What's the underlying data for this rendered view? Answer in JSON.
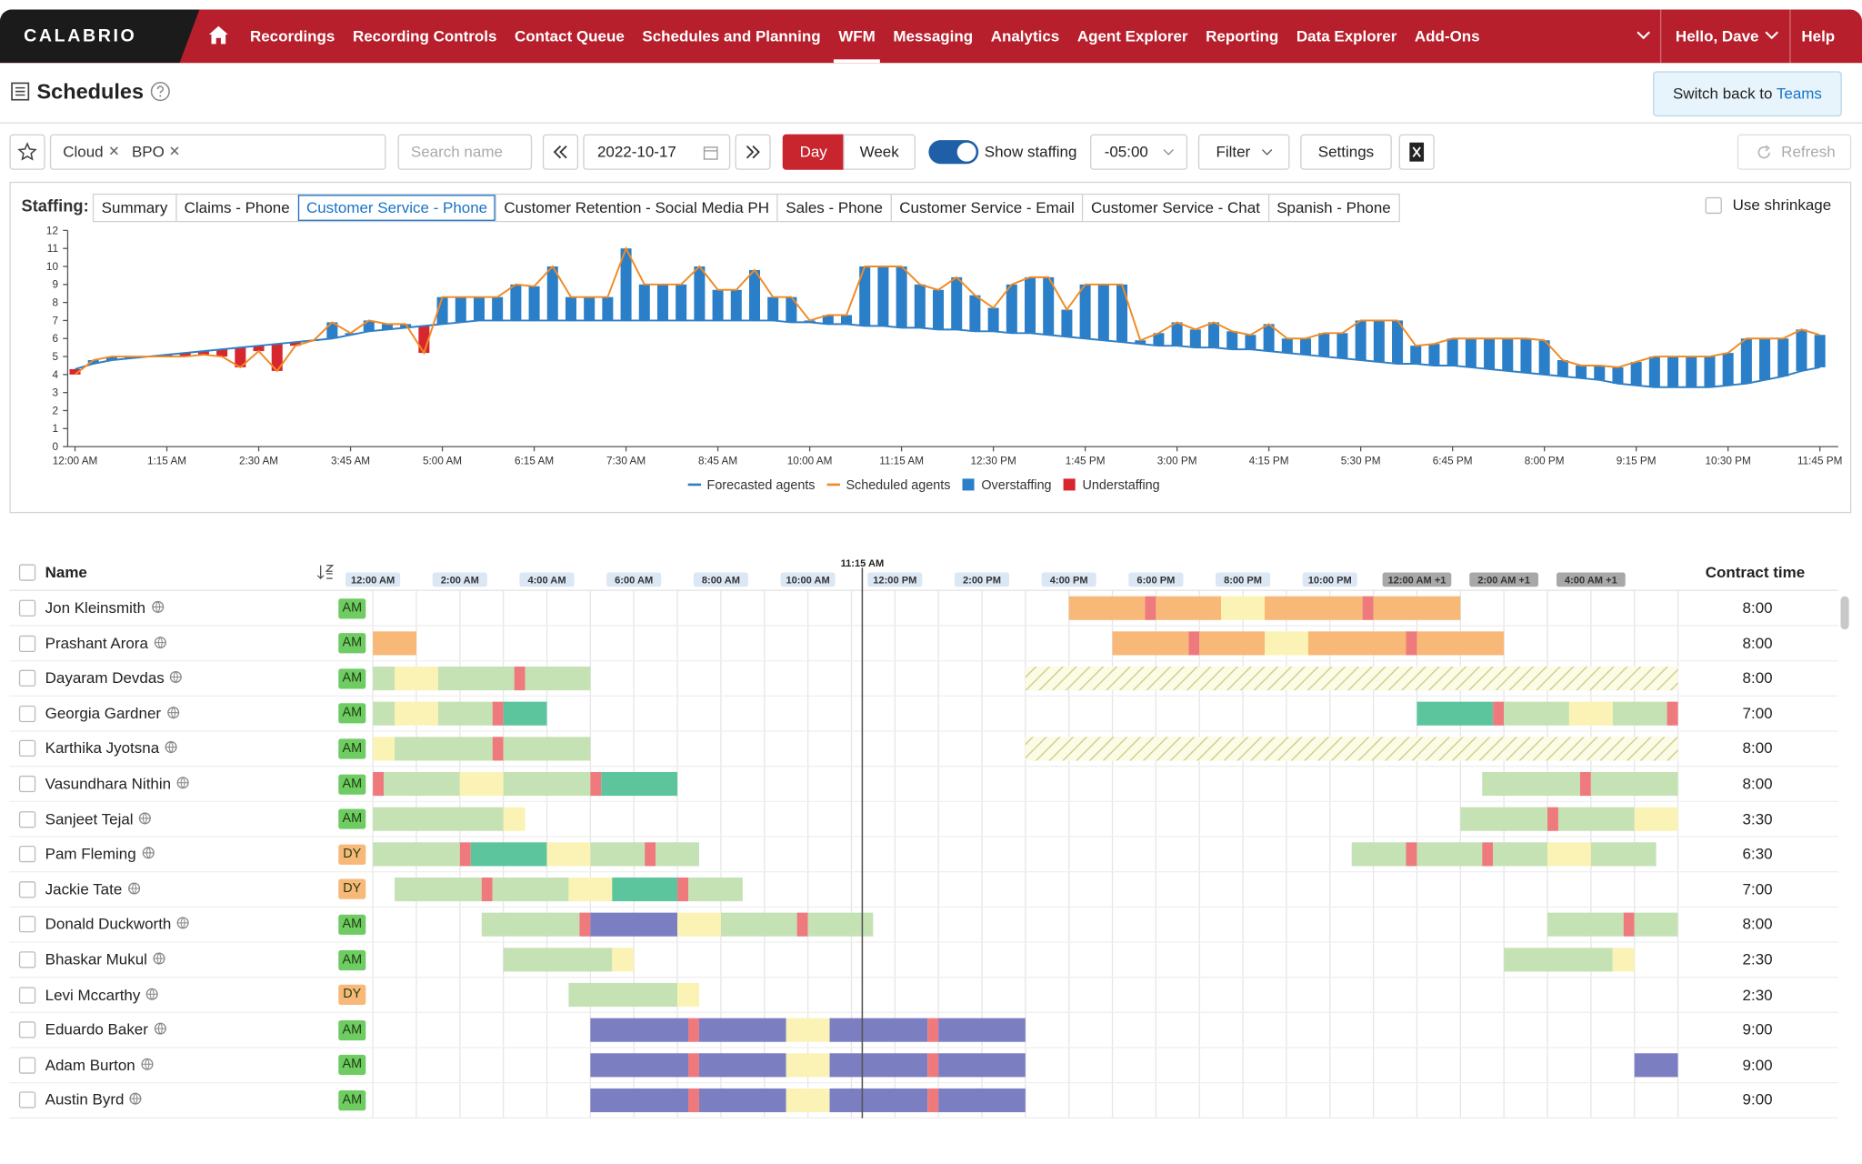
{
  "header": {
    "logo": "CALABRIO",
    "items": [
      "Recordings",
      "Recording Controls",
      "Contact Queue",
      "Schedules and Planning",
      "WFM",
      "Messaging",
      "Analytics",
      "Agent Explorer",
      "Reporting",
      "Data Explorer",
      "Add-Ons"
    ],
    "active": 4,
    "user": "Hello, Dave",
    "help": "Help"
  },
  "page": {
    "title": "Schedules",
    "switch_text": "Switch back to",
    "switch_link": "Teams"
  },
  "toolbar": {
    "tags": [
      "Cloud",
      "BPO"
    ],
    "search_placeholder": "Search name",
    "date": "2022-10-17",
    "views": [
      "Day",
      "Week"
    ],
    "show_staffing": "Show staffing",
    "timezone": "-05:00",
    "filter": "Filter",
    "settings": "Settings",
    "refresh": "Refresh"
  },
  "staffing": {
    "label": "Staffing:",
    "tabs": [
      "Summary",
      "Claims - Phone",
      "Customer Service - Phone",
      "Customer Retention - Social Media PH",
      "Sales - Phone",
      "Customer Service - Email",
      "Customer Service - Chat",
      "Spanish - Phone"
    ],
    "active": 2,
    "shrinkage": "Use shrinkage"
  },
  "chart_data": {
    "type": "staffing",
    "x": [
      0,
      0.25,
      0.5,
      0.75,
      1,
      1.25,
      1.5,
      1.75,
      2,
      2.25,
      2.5,
      2.75,
      3,
      3.25,
      3.5,
      3.75,
      4,
      4.25,
      4.5,
      4.75,
      5,
      5.25,
      5.5,
      5.75,
      6,
      6.25,
      6.5,
      6.75,
      7,
      7.25,
      7.5,
      7.75,
      8,
      8.25,
      8.5,
      8.75,
      9,
      9.25,
      9.5,
      9.75,
      10,
      10.25,
      10.5,
      10.75,
      11,
      11.25,
      11.5,
      11.75,
      12,
      12.25,
      12.5,
      12.75,
      13,
      13.25,
      13.5,
      13.75,
      14,
      14.25,
      14.5,
      14.75,
      15,
      15.25,
      15.5,
      15.75,
      16,
      16.25,
      16.5,
      16.75,
      17,
      17.25,
      17.5,
      17.75,
      18,
      18.25,
      18.5,
      18.75,
      19,
      19.25,
      19.5,
      19.75,
      20,
      20.25,
      20.5,
      20.75,
      21,
      21.25,
      21.5,
      21.75,
      22,
      22.25,
      22.5,
      22.75,
      23,
      23.25,
      23.5,
      23.75
    ],
    "series": [
      {
        "name": "Forecasted agents",
        "color": "#2f7fc4",
        "values": [
          4.3,
          4.6,
          4.8,
          4.9,
          5.0,
          5.1,
          5.2,
          5.3,
          5.4,
          5.5,
          5.6,
          5.7,
          5.8,
          5.9,
          6.0,
          6.2,
          6.4,
          6.5,
          6.6,
          6.7,
          6.8,
          6.9,
          7.0,
          7.0,
          7.0,
          7.0,
          7.0,
          7.0,
          7.0,
          7.0,
          7.0,
          7.0,
          7.0,
          7.0,
          7.0,
          7.0,
          7.0,
          7.0,
          7.0,
          6.9,
          6.9,
          6.8,
          6.8,
          6.7,
          6.7,
          6.6,
          6.6,
          6.5,
          6.5,
          6.4,
          6.4,
          6.3,
          6.3,
          6.2,
          6.1,
          6.0,
          5.9,
          5.8,
          5.7,
          5.6,
          5.6,
          5.5,
          5.5,
          5.4,
          5.4,
          5.3,
          5.2,
          5.1,
          5.0,
          4.9,
          4.8,
          4.7,
          4.6,
          4.6,
          4.5,
          4.5,
          4.4,
          4.3,
          4.2,
          4.1,
          4.0,
          3.9,
          3.8,
          3.7,
          3.5,
          3.4,
          3.3,
          3.3,
          3.3,
          3.3,
          3.4,
          3.5,
          3.7,
          3.9,
          4.2,
          4.4
        ]
      },
      {
        "name": "Scheduled agents",
        "color": "#f08a24",
        "values": [
          4.0,
          4.8,
          5.0,
          5.0,
          5.0,
          5.0,
          5.0,
          5.1,
          5.0,
          4.4,
          5.3,
          4.2,
          5.6,
          5.9,
          6.9,
          6.3,
          7.0,
          6.8,
          6.8,
          5.2,
          8.3,
          8.3,
          8.3,
          8.3,
          9.0,
          8.9,
          10.0,
          8.3,
          8.3,
          8.3,
          11.0,
          9.0,
          9.0,
          9.0,
          10.0,
          8.7,
          8.7,
          9.8,
          8.3,
          8.3,
          7.0,
          7.3,
          7.3,
          10.0,
          10.0,
          10.0,
          9.0,
          8.7,
          9.4,
          8.4,
          7.7,
          9.0,
          9.4,
          9.4,
          7.6,
          9.0,
          9.0,
          9.0,
          5.9,
          6.3,
          6.9,
          6.5,
          6.9,
          6.4,
          6.2,
          6.8,
          6.0,
          6.0,
          6.3,
          6.3,
          7.0,
          7.0,
          7.0,
          5.6,
          5.7,
          6.0,
          6.0,
          6.0,
          6.0,
          6.0,
          5.9,
          4.8,
          4.5,
          4.5,
          4.4,
          4.7,
          5.0,
          5.0,
          5.0,
          5.0,
          5.2,
          6.0,
          6.0,
          6.0,
          6.5,
          6.2
        ]
      }
    ],
    "difference_legend": [
      {
        "name": "Overstaffing",
        "color": "#2a7fc8"
      },
      {
        "name": "Understaffing",
        "color": "#d8262e"
      }
    ],
    "xlim": [
      -0.1,
      24
    ],
    "xticks": [
      {
        "value": 0,
        "label": "12:00 AM"
      },
      {
        "value": 1.25,
        "label": "1:15 AM"
      },
      {
        "value": 2.5,
        "label": "2:30 AM"
      },
      {
        "value": 3.75,
        "label": "3:45 AM"
      },
      {
        "value": 5,
        "label": "5:00 AM"
      },
      {
        "value": 6.25,
        "label": "6:15 AM"
      },
      {
        "value": 7.5,
        "label": "7:30 AM"
      },
      {
        "value": 8.75,
        "label": "8:45 AM"
      },
      {
        "value": 10,
        "label": "10:00 AM"
      },
      {
        "value": 11.25,
        "label": "11:15 AM"
      },
      {
        "value": 12.5,
        "label": "12:30 PM"
      },
      {
        "value": 13.75,
        "label": "1:45 PM"
      },
      {
        "value": 15,
        "label": "3:00 PM"
      },
      {
        "value": 16.25,
        "label": "4:15 PM"
      },
      {
        "value": 17.5,
        "label": "5:30 PM"
      },
      {
        "value": 18.75,
        "label": "6:45 PM"
      },
      {
        "value": 20,
        "label": "8:00 PM"
      },
      {
        "value": 21.25,
        "label": "9:15 PM"
      },
      {
        "value": 22.5,
        "label": "10:30 PM"
      },
      {
        "value": 23.75,
        "label": "11:45 PM"
      }
    ],
    "ylim": [
      0,
      12
    ],
    "yticks": [
      0,
      1,
      2,
      3,
      4,
      5,
      6,
      7,
      8,
      9,
      10,
      11,
      12
    ]
  },
  "schedule": {
    "name_header": "Name",
    "contract_header": "Contract time",
    "xlim": [
      0,
      30
    ],
    "now": {
      "value": 11.25,
      "label": "11:15 AM"
    },
    "ticks": [
      {
        "value": 0,
        "label": "12:00 AM"
      },
      {
        "value": 2,
        "label": "2:00 AM"
      },
      {
        "value": 4,
        "label": "4:00 AM"
      },
      {
        "value": 6,
        "label": "6:00 AM"
      },
      {
        "value": 8,
        "label": "8:00 AM"
      },
      {
        "value": 10,
        "label": "10:00 AM"
      },
      {
        "value": 12,
        "label": "12:00 PM"
      },
      {
        "value": 14,
        "label": "2:00 PM"
      },
      {
        "value": 16,
        "label": "4:00 PM"
      },
      {
        "value": 18,
        "label": "6:00 PM"
      },
      {
        "value": 20,
        "label": "8:00 PM"
      },
      {
        "value": 22,
        "label": "10:00 PM"
      },
      {
        "value": 24,
        "label": "12:00 AM +1"
      },
      {
        "value": 26,
        "label": "2:00 AM +1"
      },
      {
        "value": 28,
        "label": "4:00 AM +1"
      }
    ],
    "rows": [
      {
        "name": "Jon Kleinsmith",
        "badge": "AM",
        "badge_color": "#6fcc63",
        "contract": "8:00",
        "segments": [
          [
            16,
            17.75,
            "#f8b878"
          ],
          [
            17.75,
            18,
            "#ee7a7e"
          ],
          [
            18,
            19.5,
            "#f8b878"
          ],
          [
            19.5,
            20.5,
            "#fbf3b5"
          ],
          [
            20.5,
            22.75,
            "#f8b878"
          ],
          [
            22.75,
            23,
            "#ee7a7e"
          ],
          [
            23,
            25,
            "#f8b878"
          ]
        ]
      },
      {
        "name": "Prashant Arora",
        "badge": "AM",
        "badge_color": "#6fcc63",
        "contract": "8:00",
        "segments": [
          [
            0,
            1,
            "#f8b878"
          ],
          [
            17,
            18.75,
            "#f8b878"
          ],
          [
            18.75,
            19,
            "#ee7a7e"
          ],
          [
            19,
            20.5,
            "#f8b878"
          ],
          [
            20.5,
            21.5,
            "#fbf3b5"
          ],
          [
            21.5,
            23.75,
            "#f8b878"
          ],
          [
            23.75,
            24,
            "#ee7a7e"
          ],
          [
            24,
            26,
            "#f8b878"
          ]
        ]
      },
      {
        "name": "Dayaram Devdas",
        "badge": "AM",
        "badge_color": "#6fcc63",
        "contract": "8:00",
        "segments": [
          [
            0,
            0.5,
            "#c5e2b5"
          ],
          [
            0.5,
            1.5,
            "#fbf3b5"
          ],
          [
            1.5,
            3.25,
            "#c5e2b5"
          ],
          [
            3.25,
            3.5,
            "#ee7a7e"
          ],
          [
            3.5,
            5,
            "#c5e2b5"
          ],
          [
            15,
            30,
            "url(#hatch)"
          ]
        ]
      },
      {
        "name": "Georgia Gardner",
        "badge": "AM",
        "badge_color": "#6fcc63",
        "contract": "7:00",
        "segments": [
          [
            0,
            0.5,
            "#c5e2b5"
          ],
          [
            0.5,
            1.5,
            "#fbf3b5"
          ],
          [
            1.5,
            2.75,
            "#c5e2b5"
          ],
          [
            2.75,
            3,
            "#ee7a7e"
          ],
          [
            3,
            4,
            "#5dc59d"
          ],
          [
            24,
            25.75,
            "#5dc59d"
          ],
          [
            25.75,
            26,
            "#ee7a7e"
          ],
          [
            26,
            27.5,
            "#c5e2b5"
          ],
          [
            27.5,
            28.5,
            "#fbf3b5"
          ],
          [
            28.5,
            29.75,
            "#c5e2b5"
          ],
          [
            29.75,
            30,
            "#ee7a7e"
          ]
        ]
      },
      {
        "name": "Karthika Jyotsna",
        "badge": "AM",
        "badge_color": "#6fcc63",
        "contract": "8:00",
        "segments": [
          [
            0,
            0.5,
            "#fbf3b5"
          ],
          [
            0.5,
            2.75,
            "#c5e2b5"
          ],
          [
            2.75,
            3,
            "#ee7a7e"
          ],
          [
            3,
            5,
            "#c5e2b5"
          ],
          [
            15,
            30,
            "url(#hatch)"
          ]
        ]
      },
      {
        "name": "Vasundhara Nithin",
        "badge": "AM",
        "badge_color": "#6fcc63",
        "contract": "8:00",
        "segments": [
          [
            0,
            0.25,
            "#ee7a7e"
          ],
          [
            0.25,
            2,
            "#c5e2b5"
          ],
          [
            2,
            3,
            "#fbf3b5"
          ],
          [
            3,
            5,
            "#c5e2b5"
          ],
          [
            5,
            5.25,
            "#ee7a7e"
          ],
          [
            5.25,
            7,
            "#5dc59d"
          ],
          [
            25.5,
            27.75,
            "#c5e2b5"
          ],
          [
            27.75,
            28,
            "#ee7a7e"
          ],
          [
            28,
            30,
            "#c5e2b5"
          ]
        ]
      },
      {
        "name": "Sanjeet Tejal",
        "badge": "AM",
        "badge_color": "#6fcc63",
        "contract": "3:30",
        "segments": [
          [
            0,
            3,
            "#c5e2b5"
          ],
          [
            3,
            3.5,
            "#fbf3b5"
          ],
          [
            25,
            27,
            "#c5e2b5"
          ],
          [
            27,
            27.25,
            "#ee7a7e"
          ],
          [
            27.25,
            29,
            "#c5e2b5"
          ],
          [
            29,
            30,
            "#fbf3b5"
          ]
        ]
      },
      {
        "name": "Pam Fleming",
        "badge": "DY",
        "badge_color": "#f8b878",
        "contract": "6:30",
        "segments": [
          [
            0,
            2,
            "#c5e2b5"
          ],
          [
            2,
            2.25,
            "#ee7a7e"
          ],
          [
            2.25,
            4,
            "#5dc59d"
          ],
          [
            4,
            5,
            "#fbf3b5"
          ],
          [
            5,
            6.25,
            "#c5e2b5"
          ],
          [
            6.25,
            6.5,
            "#ee7a7e"
          ],
          [
            6.5,
            7.5,
            "#c5e2b5"
          ],
          [
            22.5,
            23.75,
            "#c5e2b5"
          ],
          [
            23.75,
            24,
            "#ee7a7e"
          ],
          [
            24,
            25.5,
            "#c5e2b5"
          ],
          [
            25.5,
            25.75,
            "#ee7a7e"
          ],
          [
            25.75,
            27,
            "#c5e2b5"
          ],
          [
            27,
            28,
            "#fbf3b5"
          ],
          [
            28,
            29.5,
            "#c5e2b5"
          ]
        ]
      },
      {
        "name": "Jackie Tate",
        "badge": "DY",
        "badge_color": "#f8b878",
        "contract": "7:00",
        "segments": [
          [
            0.5,
            2.5,
            "#c5e2b5"
          ],
          [
            2.5,
            2.75,
            "#ee7a7e"
          ],
          [
            2.75,
            4.5,
            "#c5e2b5"
          ],
          [
            4.5,
            5.5,
            "#fbf3b5"
          ],
          [
            5.5,
            7,
            "#5dc59d"
          ],
          [
            7,
            7.25,
            "#ee7a7e"
          ],
          [
            7.25,
            8.5,
            "#c5e2b5"
          ]
        ]
      },
      {
        "name": "Donald Duckworth",
        "badge": "AM",
        "badge_color": "#6fcc63",
        "contract": "8:00",
        "segments": [
          [
            2.5,
            4.75,
            "#c5e2b5"
          ],
          [
            4.75,
            5,
            "#ee7a7e"
          ],
          [
            5,
            7,
            "#7c7ec2"
          ],
          [
            7,
            8,
            "#fbf3b5"
          ],
          [
            8,
            9.75,
            "#c5e2b5"
          ],
          [
            9.75,
            10,
            "#ee7a7e"
          ],
          [
            10,
            11.5,
            "#c5e2b5"
          ],
          [
            27,
            28.75,
            "#c5e2b5"
          ],
          [
            28.75,
            29,
            "#ee7a7e"
          ],
          [
            29,
            30,
            "#c5e2b5"
          ]
        ]
      },
      {
        "name": "Bhaskar Mukul",
        "badge": "AM",
        "badge_color": "#6fcc63",
        "contract": "2:30",
        "segments": [
          [
            3,
            5.5,
            "#c5e2b5"
          ],
          [
            5.5,
            6,
            "#fbf3b5"
          ],
          [
            26,
            28.5,
            "#c5e2b5"
          ],
          [
            28.5,
            29,
            "#fbf3b5"
          ]
        ]
      },
      {
        "name": "Levi Mccarthy",
        "badge": "DY",
        "badge_color": "#f8b878",
        "contract": "2:30",
        "segments": [
          [
            4.5,
            7,
            "#c5e2b5"
          ],
          [
            7,
            7.5,
            "#fbf3b5"
          ]
        ]
      },
      {
        "name": "Eduardo Baker",
        "badge": "AM",
        "badge_color": "#6fcc63",
        "contract": "9:00",
        "segments": [
          [
            5,
            7.25,
            "#7c7ec2"
          ],
          [
            7.25,
            7.5,
            "#ee7a7e"
          ],
          [
            7.5,
            9.5,
            "#7c7ec2"
          ],
          [
            9.5,
            10.5,
            "#fbf3b5"
          ],
          [
            10.5,
            12.75,
            "#7c7ec2"
          ],
          [
            12.75,
            13,
            "#ee7a7e"
          ],
          [
            13,
            15,
            "#7c7ec2"
          ]
        ]
      },
      {
        "name": "Adam Burton",
        "badge": "AM",
        "badge_color": "#6fcc63",
        "contract": "9:00",
        "segments": [
          [
            5,
            7.25,
            "#7c7ec2"
          ],
          [
            7.25,
            7.5,
            "#ee7a7e"
          ],
          [
            7.5,
            9.5,
            "#7c7ec2"
          ],
          [
            9.5,
            10.5,
            "#fbf3b5"
          ],
          [
            10.5,
            12.75,
            "#7c7ec2"
          ],
          [
            12.75,
            13,
            "#ee7a7e"
          ],
          [
            13,
            15,
            "#7c7ec2"
          ],
          [
            29,
            30,
            "#7c7ec2"
          ]
        ]
      },
      {
        "name": "Austin Byrd",
        "badge": "AM",
        "badge_color": "#6fcc63",
        "contract": "9:00",
        "segments": [
          [
            5,
            7.25,
            "#7c7ec2"
          ],
          [
            7.25,
            7.5,
            "#ee7a7e"
          ],
          [
            7.5,
            9.5,
            "#7c7ec2"
          ],
          [
            9.5,
            10.5,
            "#fbf3b5"
          ],
          [
            10.5,
            12.75,
            "#7c7ec2"
          ],
          [
            12.75,
            13,
            "#ee7a7e"
          ],
          [
            13,
            15,
            "#7c7ec2"
          ]
        ]
      }
    ]
  }
}
